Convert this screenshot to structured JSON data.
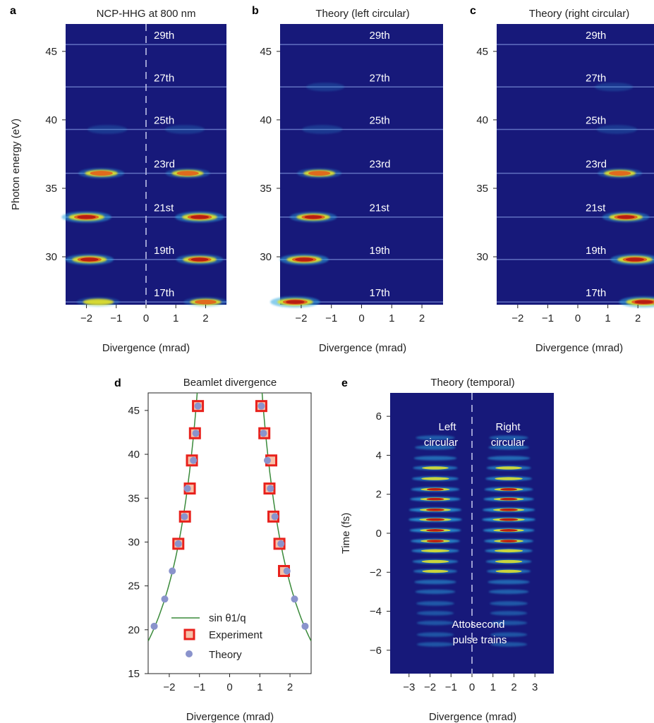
{
  "chart_data": [
    {
      "panel": "a",
      "type": "heatmap",
      "title": "NCP-HHG at 800 nm",
      "xlabel": "Divergence (mrad)",
      "ylabel": "Photon energy (eV)",
      "xlim": [
        -2.7,
        2.7
      ],
      "ylim": [
        26.5,
        47
      ],
      "xticks": [
        -2,
        -1,
        0,
        1,
        2
      ],
      "yticks": [
        30,
        35,
        40,
        45
      ],
      "harmonic_labels": [
        "29th",
        "27th",
        "25th",
        "23rd",
        "21st",
        "19th",
        "17th"
      ],
      "harmonic_energies": [
        45.5,
        42.4,
        39.3,
        36.1,
        32.9,
        29.8,
        26.7
      ],
      "spots": [
        {
          "x": -1.3,
          "y": 39.3,
          "i": 0.25
        },
        {
          "x": 1.3,
          "y": 39.3,
          "i": 0.25
        },
        {
          "x": -1.5,
          "y": 36.1,
          "i": 0.7
        },
        {
          "x": 1.4,
          "y": 36.1,
          "i": 0.6
        },
        {
          "x": -2.0,
          "y": 32.9,
          "i": 1.0
        },
        {
          "x": 1.8,
          "y": 32.9,
          "i": 0.95
        },
        {
          "x": -1.9,
          "y": 29.8,
          "i": 0.9
        },
        {
          "x": 1.8,
          "y": 29.8,
          "i": 0.8
        },
        {
          "x": -1.6,
          "y": 26.7,
          "i": 0.5
        },
        {
          "x": 2.0,
          "y": 26.7,
          "i": 0.55
        }
      ],
      "center_dashed_line": 0
    },
    {
      "panel": "b",
      "type": "heatmap",
      "title": "Theory (left circular)",
      "xlabel": "Divergence (mrad)",
      "ylabel": "",
      "xlim": [
        -2.7,
        2.7
      ],
      "ylim": [
        26.5,
        47
      ],
      "xticks": [
        -2,
        -1,
        0,
        1,
        2
      ],
      "yticks": [
        30,
        35,
        40,
        45
      ],
      "harmonic_labels": [
        "29th",
        "27th",
        "25th",
        "23rd",
        "21st",
        "19th",
        "17th"
      ],
      "harmonic_energies": [
        45.5,
        42.4,
        39.3,
        36.1,
        32.9,
        29.8,
        26.7
      ],
      "spots": [
        {
          "x": -1.2,
          "y": 42.4,
          "i": 0.15
        },
        {
          "x": -1.3,
          "y": 39.3,
          "i": 0.3
        },
        {
          "x": -1.4,
          "y": 36.1,
          "i": 0.6
        },
        {
          "x": -1.6,
          "y": 32.9,
          "i": 0.8
        },
        {
          "x": -1.9,
          "y": 29.8,
          "i": 0.95
        },
        {
          "x": -2.2,
          "y": 26.7,
          "i": 1.0
        }
      ]
    },
    {
      "panel": "c",
      "type": "heatmap",
      "title": "Theory (right circular)",
      "xlabel": "Divergence (mrad)",
      "ylabel": "",
      "xlim": [
        -2.7,
        2.7
      ],
      "ylim": [
        26.5,
        47
      ],
      "xticks": [
        -2,
        -1,
        0,
        1,
        2
      ],
      "yticks": [
        30,
        35,
        40,
        45
      ],
      "harmonic_labels": [
        "29th",
        "27th",
        "25th",
        "23rd",
        "21st",
        "19th",
        "17th"
      ],
      "harmonic_energies": [
        45.5,
        42.4,
        39.3,
        36.1,
        32.9,
        29.8,
        26.7
      ],
      "spots": [
        {
          "x": 1.2,
          "y": 42.4,
          "i": 0.15
        },
        {
          "x": 1.3,
          "y": 39.3,
          "i": 0.3
        },
        {
          "x": 1.4,
          "y": 36.1,
          "i": 0.6
        },
        {
          "x": 1.6,
          "y": 32.9,
          "i": 0.8
        },
        {
          "x": 1.9,
          "y": 29.8,
          "i": 0.95
        },
        {
          "x": 2.2,
          "y": 26.7,
          "i": 1.0
        }
      ]
    },
    {
      "panel": "d",
      "type": "scatter",
      "title": "Beamlet divergence",
      "xlabel": "Divergence (mrad)",
      "ylabel": "",
      "xlim": [
        -2.7,
        2.7
      ],
      "ylim": [
        15,
        47
      ],
      "xticks": [
        -2,
        -1,
        0,
        1,
        2
      ],
      "yticks": [
        15,
        20,
        25,
        30,
        35,
        40,
        45
      ],
      "legend": [
        "sin θ1/q",
        "Experiment",
        "Theory"
      ],
      "legend_position": "bottom-left",
      "series": [
        {
          "name": "Experiment",
          "points": [
            [
              -1.05,
              45.5
            ],
            [
              -1.15,
              42.4
            ],
            [
              -1.25,
              39.3
            ],
            [
              -1.32,
              36.1
            ],
            [
              -1.48,
              32.9
            ],
            [
              -1.7,
              29.8
            ],
            [
              1.05,
              45.5
            ],
            [
              1.15,
              42.4
            ],
            [
              1.38,
              39.3
            ],
            [
              1.32,
              36.1
            ],
            [
              1.45,
              32.9
            ],
            [
              1.65,
              29.8
            ],
            [
              1.8,
              26.7
            ]
          ]
        },
        {
          "name": "Theory",
          "points": [
            [
              -1.05,
              45.5
            ],
            [
              -1.12,
              42.4
            ],
            [
              -1.2,
              39.3
            ],
            [
              -1.4,
              36.1
            ],
            [
              -1.5,
              32.9
            ],
            [
              -1.7,
              29.8
            ],
            [
              -1.9,
              26.7
            ],
            [
              -2.15,
              23.5
            ],
            [
              -2.5,
              20.4
            ],
            [
              1.05,
              45.5
            ],
            [
              1.12,
              42.4
            ],
            [
              1.25,
              39.3
            ],
            [
              1.35,
              36.1
            ],
            [
              1.5,
              32.9
            ],
            [
              1.7,
              29.8
            ],
            [
              1.9,
              26.7
            ],
            [
              2.15,
              23.5
            ],
            [
              2.5,
              20.4
            ]
          ]
        }
      ]
    },
    {
      "panel": "e",
      "type": "heatmap",
      "title": "Theory (temporal)",
      "xlabel": "Divergence (mrad)",
      "ylabel": "Time (fs)",
      "xlim": [
        -3.9,
        3.9
      ],
      "ylim": [
        -7.2,
        7.2
      ],
      "xticks": [
        -3,
        -2,
        -1,
        0,
        1,
        2,
        3
      ],
      "yticks": [
        -6,
        -4,
        -2,
        0,
        2,
        4,
        6
      ],
      "annotations": [
        "Left",
        "circular",
        "Right",
        "circular",
        "Attosecond",
        "pulse trains"
      ],
      "pulse_times": [
        -5.7,
        -5.2,
        -4.6,
        -4.1,
        -3.6,
        -3.0,
        -2.5,
        -1.95,
        -1.45,
        -0.9,
        -0.4,
        0.15,
        0.7,
        1.2,
        1.75,
        2.25,
        2.8,
        3.35,
        3.85,
        4.4,
        4.9
      ],
      "center_dashed_line": 0
    }
  ],
  "panel_letters": {
    "a": "a",
    "b": "b",
    "c": "c",
    "d": "d",
    "e": "e"
  },
  "colors": {
    "background": "#17197a",
    "line": "#6a7ac8",
    "spot_hot": "#b81d12",
    "spot_mid": "#e6e628",
    "spot_cool": "#2aa6e0",
    "fit": "#3a8a3a",
    "exp": "#e8211c",
    "theory": "#8a93cc"
  }
}
